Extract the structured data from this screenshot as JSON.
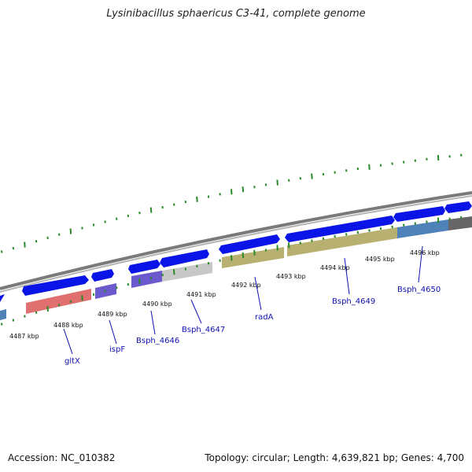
{
  "title": "Lysinibacillus sphaericus C3-41, complete genome",
  "footer": {
    "accession": "Accession: NC_010382",
    "topology": "Topology: circular; Length: 4,639,821 bp; Genes: 4,700"
  },
  "scale_ticks": [
    "4487 kbp",
    "4488 kbp",
    "4489 kbp",
    "4490 kbp",
    "4491 kbp",
    "4492 kbp",
    "4493 kbp",
    "4494 kbp",
    "4495 kbp",
    "4496 kbp"
  ],
  "gene_labels": [
    "gltX",
    "ispF",
    "Bsph_4646",
    "Bsph_4647",
    "radA",
    "Bsph_4649",
    "Bsph_4650"
  ],
  "colors": {
    "forward_gene": "#0a14e6",
    "backbone": "#8c8c8c",
    "gc_tick": "#2a8a2a",
    "label": "#1010b0",
    "cog_red": "#e07070",
    "cog_purple": "#6a5acd",
    "cog_grey": "#c8c8c8",
    "cog_olive": "#b8b070",
    "cog_steelblue": "#4f82b8",
    "cog_darkgrey": "#666666"
  }
}
